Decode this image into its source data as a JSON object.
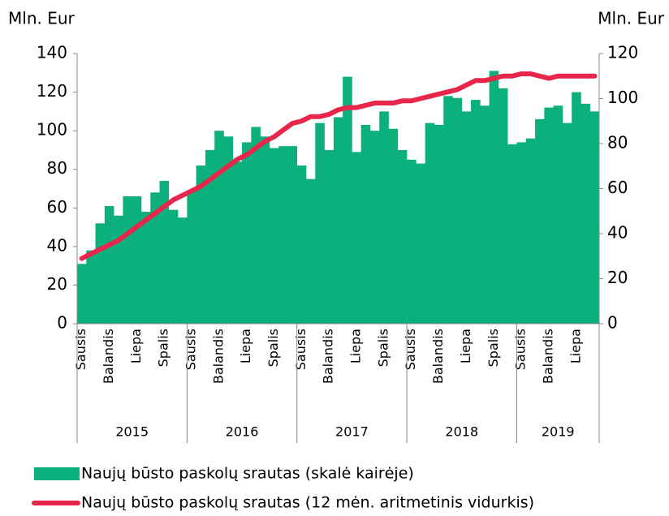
{
  "chart_data": {
    "type": "bar_line",
    "y_label": "Mln. Eur",
    "y2_label": "Mln. Eur",
    "categories": [
      "Sausis",
      null,
      null,
      "Balandis",
      null,
      null,
      "Liepa",
      null,
      null,
      "Spalis",
      null,
      null,
      "Sausis",
      null,
      null,
      "Balandis",
      null,
      null,
      "Liepa",
      null,
      null,
      "Spalis",
      null,
      null,
      "Sausis",
      null,
      null,
      "Balandis",
      null,
      null,
      "Liepa",
      null,
      null,
      "Spalis",
      null,
      null,
      "Sausis",
      null,
      null,
      "Balandis",
      null,
      null,
      "Liepa",
      null,
      null,
      "Spalis",
      null,
      null,
      "Sausis",
      null,
      null,
      "Balandis",
      null,
      null,
      "Liepa",
      null,
      null
    ],
    "years": [
      "2015",
      "2016",
      "2017",
      "2018",
      "2019"
    ],
    "ylim": [
      0,
      140
    ],
    "yticks": [
      0,
      20,
      40,
      60,
      80,
      100,
      120,
      140
    ],
    "y2lim": [
      0,
      120
    ],
    "y2ticks": [
      0,
      20,
      40,
      60,
      80,
      100,
      120
    ],
    "series": [
      {
        "name": "Naujų būsto paskolų srautas (skalė kairėje)",
        "type": "bar",
        "color": "#0bb07c",
        "values": [
          31,
          38,
          52,
          61,
          56,
          66,
          66,
          58,
          68,
          74,
          59,
          55,
          69,
          82,
          90,
          100,
          97,
          84,
          94,
          102,
          97,
          91,
          92,
          92,
          82,
          75,
          104,
          90,
          107,
          128,
          89,
          103,
          100,
          110,
          101,
          90,
          85,
          83,
          104,
          103,
          118,
          117,
          110,
          116,
          113,
          131,
          122,
          93,
          94,
          96,
          106,
          112,
          113,
          104,
          120,
          114,
          110
        ]
      },
      {
        "name": "Naujų būsto paskolų srautas (12 mėn. aritmetinis vidurkis)",
        "type": "line",
        "axis": "y2",
        "color": "#e8254b",
        "values": [
          29,
          31,
          33,
          35,
          37,
          40,
          43,
          46,
          49,
          52,
          55,
          57,
          59,
          61,
          64,
          67,
          70,
          73,
          75,
          78,
          81,
          83,
          86,
          89,
          90,
          92,
          92,
          93,
          95,
          96,
          96,
          97,
          98,
          98,
          98,
          99,
          99,
          100,
          101,
          102,
          103,
          104,
          106,
          108,
          108,
          109,
          110,
          110,
          111,
          111,
          110,
          109,
          110,
          110,
          110,
          110,
          110
        ]
      }
    ]
  }
}
